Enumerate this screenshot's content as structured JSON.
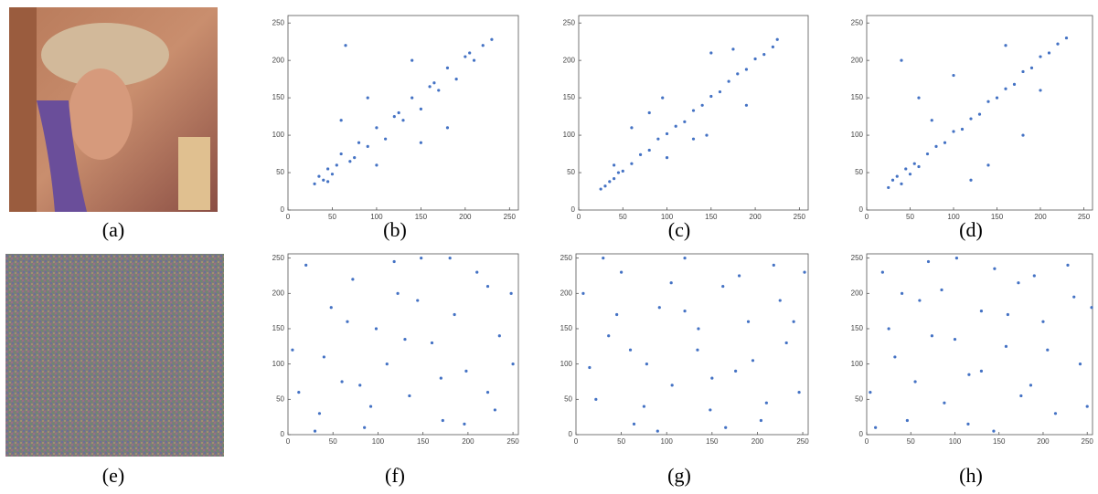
{
  "captions": [
    "(a)",
    "(b)",
    "(c)",
    "(d)",
    "(e)",
    "(f)",
    "(g)",
    "(h)"
  ],
  "chart_data": [
    {
      "type": "scatter",
      "color": "#4472c4",
      "xlim": [
        0,
        260
      ],
      "ylim": [
        0,
        260
      ],
      "xticks": [
        0,
        50,
        100,
        150,
        200,
        250
      ],
      "yticks": [
        0,
        50,
        100,
        150,
        200,
        250
      ],
      "x": [
        30,
        35,
        40,
        45,
        50,
        55,
        60,
        70,
        80,
        90,
        100,
        110,
        120,
        130,
        140,
        150,
        160,
        170,
        180,
        190,
        200,
        210,
        220,
        230,
        60,
        100,
        140,
        180,
        90,
        150,
        45,
        75,
        125,
        165,
        205,
        65
      ],
      "y": [
        35,
        45,
        40,
        55,
        48,
        60,
        75,
        65,
        90,
        85,
        110,
        95,
        125,
        120,
        150,
        135,
        165,
        160,
        190,
        175,
        205,
        200,
        220,
        228,
        120,
        60,
        200,
        110,
        150,
        90,
        38,
        70,
        130,
        170,
        210,
        220
      ]
    },
    {
      "type": "scatter",
      "color": "#4472c4",
      "xlim": [
        0,
        260
      ],
      "ylim": [
        0,
        260
      ],
      "xticks": [
        0,
        50,
        100,
        150,
        200,
        250
      ],
      "yticks": [
        0,
        50,
        100,
        150,
        200,
        250
      ],
      "x": [
        25,
        30,
        35,
        40,
        45,
        50,
        60,
        70,
        80,
        90,
        100,
        110,
        120,
        130,
        140,
        150,
        160,
        170,
        180,
        190,
        200,
        210,
        220,
        225,
        60,
        100,
        150,
        190,
        80,
        130,
        40,
        95,
        145,
        175
      ],
      "y": [
        28,
        32,
        38,
        42,
        50,
        52,
        62,
        74,
        80,
        95,
        102,
        112,
        118,
        133,
        140,
        152,
        158,
        172,
        182,
        188,
        202,
        208,
        218,
        228,
        110,
        70,
        210,
        140,
        130,
        95,
        60,
        150,
        100,
        215
      ]
    },
    {
      "type": "scatter",
      "color": "#4472c4",
      "xlim": [
        0,
        260
      ],
      "ylim": [
        0,
        260
      ],
      "xticks": [
        0,
        50,
        100,
        150,
        200,
        250
      ],
      "yticks": [
        0,
        50,
        100,
        150,
        200,
        250
      ],
      "x": [
        25,
        30,
        35,
        40,
        45,
        50,
        55,
        60,
        70,
        80,
        90,
        100,
        110,
        120,
        130,
        140,
        150,
        160,
        170,
        180,
        190,
        200,
        210,
        220,
        230,
        40,
        60,
        100,
        140,
        180,
        120,
        160,
        75,
        200
      ],
      "y": [
        30,
        40,
        45,
        35,
        55,
        48,
        62,
        58,
        75,
        85,
        90,
        105,
        108,
        122,
        128,
        145,
        150,
        162,
        168,
        185,
        190,
        205,
        210,
        222,
        230,
        200,
        150,
        180,
        60,
        100,
        40,
        220,
        120,
        160
      ]
    },
    {
      "type": "scatter",
      "color": "#4472c4",
      "xlim": [
        0,
        256
      ],
      "ylim": [
        0,
        256
      ],
      "xticks": [
        0,
        50,
        100,
        150,
        200,
        250
      ],
      "yticks": [
        0,
        50,
        100,
        150,
        200,
        250
      ],
      "x": [
        5,
        20,
        35,
        48,
        60,
        72,
        85,
        98,
        110,
        122,
        135,
        148,
        160,
        172,
        185,
        198,
        210,
        222,
        235,
        248,
        12,
        40,
        66,
        92,
        118,
        144,
        170,
        196,
        222,
        250,
        30,
        80,
        130,
        180,
        230
      ],
      "y": [
        120,
        240,
        30,
        180,
        75,
        220,
        10,
        150,
        100,
        200,
        55,
        250,
        130,
        20,
        170,
        90,
        230,
        60,
        140,
        200,
        60,
        110,
        160,
        40,
        245,
        190,
        80,
        15,
        210,
        100,
        5,
        70,
        135,
        250,
        35
      ]
    },
    {
      "type": "scatter",
      "color": "#4472c4",
      "xlim": [
        0,
        256
      ],
      "ylim": [
        0,
        256
      ],
      "xticks": [
        0,
        50,
        100,
        150,
        200,
        250
      ],
      "yticks": [
        0,
        50,
        100,
        150,
        200,
        250
      ],
      "x": [
        8,
        22,
        36,
        50,
        64,
        78,
        92,
        106,
        120,
        134,
        148,
        162,
        176,
        190,
        204,
        218,
        232,
        246,
        15,
        45,
        75,
        105,
        135,
        165,
        195,
        225,
        252,
        30,
        90,
        150,
        210,
        60,
        120,
        180,
        240
      ],
      "y": [
        200,
        50,
        140,
        230,
        15,
        100,
        180,
        70,
        250,
        120,
        35,
        210,
        90,
        160,
        20,
        240,
        130,
        60,
        95,
        170,
        40,
        215,
        150,
        10,
        105,
        190,
        230,
        250,
        5,
        80,
        45,
        120,
        175,
        225,
        160
      ]
    },
    {
      "type": "scatter",
      "color": "#4472c4",
      "xlim": [
        0,
        256
      ],
      "ylim": [
        0,
        256
      ],
      "xticks": [
        0,
        50,
        100,
        150,
        200,
        250
      ],
      "yticks": [
        0,
        50,
        100,
        150,
        200,
        250
      ],
      "x": [
        4,
        18,
        32,
        46,
        60,
        74,
        88,
        102,
        116,
        130,
        144,
        158,
        172,
        186,
        200,
        214,
        228,
        242,
        255,
        25,
        55,
        85,
        115,
        145,
        175,
        205,
        235,
        10,
        70,
        130,
        190,
        250,
        40,
        100,
        160
      ],
      "y": [
        60,
        230,
        110,
        20,
        190,
        140,
        45,
        250,
        85,
        175,
        5,
        125,
        215,
        70,
        160,
        30,
        240,
        100,
        180,
        150,
        75,
        205,
        15,
        235,
        55,
        120,
        195,
        10,
        245,
        90,
        225,
        40,
        200,
        135,
        170
      ]
    }
  ]
}
